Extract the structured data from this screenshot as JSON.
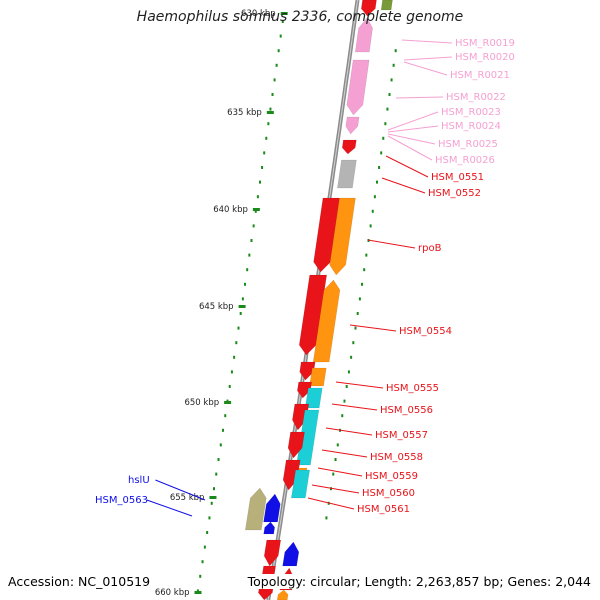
{
  "title": "Haemophilus somnus 2336, complete genome",
  "footer": {
    "accession": "Accession: NC_010519",
    "summary": "Topology: circular; Length: 2,263,857 bp; Genes: 2,044"
  },
  "colors": {
    "red": "#e8141a",
    "pink": "#f5a0d2",
    "orange": "#ff9410",
    "cyan": "#1ccfd6",
    "blue": "#1010e6",
    "khaki": "#b8b07a",
    "gray": "#b4b4b4",
    "tick": "#1a8a1a",
    "backbone": "#8c8c8c"
  },
  "kbp_labels": [
    "630 kbp",
    "635 kbp",
    "640 kbp",
    "645 kbp",
    "650 kbp",
    "655 kbp",
    "660 kbp"
  ],
  "gene_labels": [
    {
      "text": "HSM_R0019",
      "color": "pink"
    },
    {
      "text": "HSM_R0020",
      "color": "pink"
    },
    {
      "text": "HSM_R0021",
      "color": "pink"
    },
    {
      "text": "HSM_R0022",
      "color": "pink"
    },
    {
      "text": "HSM_R0023",
      "color": "pink"
    },
    {
      "text": "HSM_R0024",
      "color": "pink"
    },
    {
      "text": "HSM_R0025",
      "color": "pink"
    },
    {
      "text": "HSM_R0026",
      "color": "pink"
    },
    {
      "text": "HSM_0551",
      "color": "red"
    },
    {
      "text": "HSM_0552",
      "color": "red"
    },
    {
      "text": "rpoB",
      "color": "red"
    },
    {
      "text": "HSM_0554",
      "color": "red"
    },
    {
      "text": "HSM_0555",
      "color": "red"
    },
    {
      "text": "HSM_0556",
      "color": "red"
    },
    {
      "text": "HSM_0557",
      "color": "red"
    },
    {
      "text": "HSM_0558",
      "color": "red"
    },
    {
      "text": "HSM_0559",
      "color": "red"
    },
    {
      "text": "HSM_0560",
      "color": "red"
    },
    {
      "text": "HSM_0561",
      "color": "red"
    },
    {
      "text": "hslU",
      "color": "blue"
    },
    {
      "text": "HSM_0563",
      "color": "blue"
    }
  ]
}
